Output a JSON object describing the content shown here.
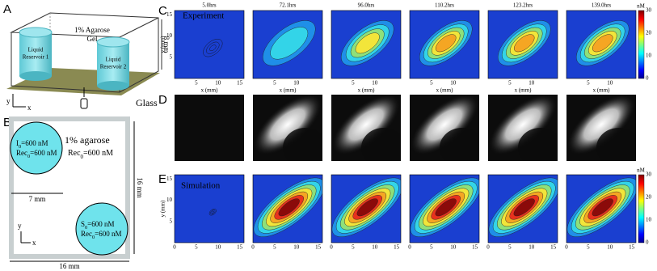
{
  "panel_a": {
    "label": "A",
    "gel_line_1": "1% Agarose",
    "gel_line_2": "Gel",
    "reservoir_1": [
      "Liquid",
      "Reservoir 1"
    ],
    "reservoir_2": [
      "Liquid",
      "Reservoir 2"
    ],
    "height": "8 mm",
    "glass": "Glass",
    "axis_y": "y",
    "axis_x": "x"
  },
  "panel_b": {
    "label": "B",
    "title": "1% agarose",
    "circle_1": [
      {
        "main": "I",
        "sub": "0",
        "rest": "=600 nM"
      },
      {
        "main": "Rec",
        "sub": "0",
        "rest": "=600 nM"
      }
    ],
    "bulk": {
      "main": "Rec",
      "sub": "0",
      "rest": "=600 nM"
    },
    "circle_2": [
      {
        "main": "S",
        "sub": "0",
        "rest": "=600 nM"
      },
      {
        "main": "Rec",
        "sub": "0",
        "rest": "=600 nM"
      }
    ],
    "diameter": "7 mm",
    "side": "16 mm",
    "bottom": "16 mm",
    "axis_y": "y",
    "axis_x": "x"
  },
  "panel_c": {
    "label": "C",
    "title": "Experiment",
    "times": [
      "5.0hrs",
      "72.1hrs",
      "96.0hrs",
      "110.2hrs",
      "123.2hrs",
      "139.0hrs"
    ],
    "y_label": "y (mm)",
    "yticks": [
      5,
      10,
      15
    ],
    "x_label": "x (mm)",
    "xticks_first": [
      5,
      10,
      15
    ],
    "xticks": [
      5,
      10
    ],
    "colorbar_unit": "nM",
    "colorbar_ticks": [
      0,
      10,
      20,
      30
    ]
  },
  "panel_d": {
    "label": "D"
  },
  "panel_e": {
    "label": "E",
    "title": "Simulation",
    "y_label": "y (mm)",
    "yticks": [
      5,
      10,
      15
    ],
    "xticks": [
      0,
      5,
      10,
      15
    ],
    "colorbar_unit": "nM",
    "colorbar_ticks": [
      0,
      10,
      20,
      30
    ]
  }
}
